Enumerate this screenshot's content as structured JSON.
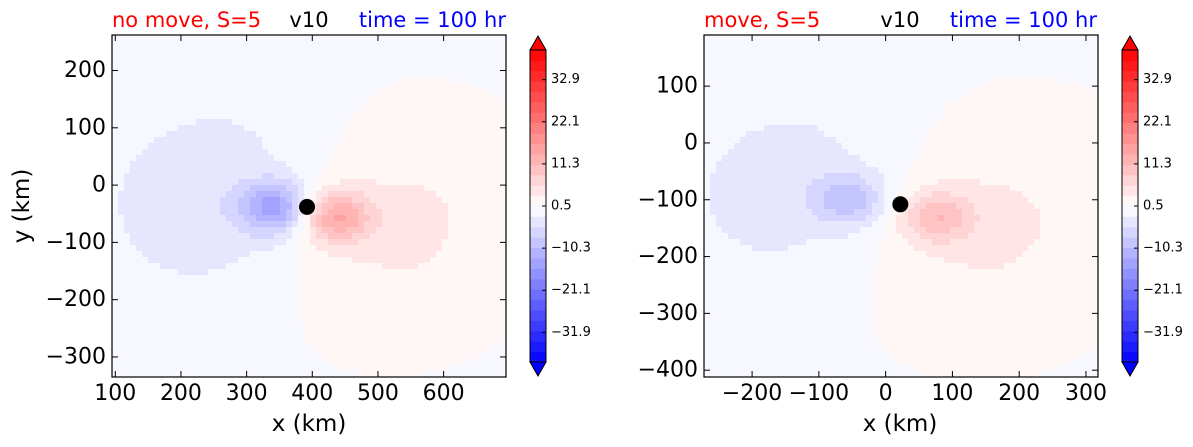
{
  "chart_data": [
    {
      "type": "heatmap",
      "title_left": "no move, S=5",
      "title_center": "v10",
      "title_right": "time = 100 hr",
      "title_colors": {
        "left": "#ff0000",
        "center": "#000000",
        "right": "#0000ff"
      },
      "xlabel": "x (km)",
      "ylabel": "y (km)",
      "xlim": [
        95,
        695
      ],
      "ylim": [
        -335,
        262
      ],
      "xticks": [
        100,
        200,
        300,
        400,
        500,
        600
      ],
      "xtick_labels": [
        "100",
        "200",
        "300",
        "400",
        "500",
        "600"
      ],
      "yticks": [
        200,
        100,
        0,
        -100,
        -200,
        -300
      ],
      "ytick_labels": [
        "200",
        "100",
        "0",
        "−100",
        "−200",
        "−300"
      ],
      "center_marker": {
        "x": 392,
        "y": -38
      },
      "field": {
        "neg_center": [
          345,
          -40
        ],
        "pos_center": [
          433,
          -55
        ],
        "neg_peak": -24,
        "pos_peak": 24,
        "spread_km": 220
      },
      "colorbar": {
        "ticks": [
          32.9,
          22.1,
          11.3,
          0.5,
          -10.3,
          -21.1,
          -31.9
        ],
        "tick_labels": [
          "32.9",
          "22.1",
          "11.3",
          "0.5",
          "−10.3",
          "−21.1",
          "−31.9"
        ],
        "vmin": -39.5,
        "vmax": 40.5,
        "levels": 30,
        "extend": "both"
      }
    },
    {
      "type": "heatmap",
      "title_left": "move, S=5",
      "title_center": "v10",
      "title_right": "time = 100 hr",
      "title_colors": {
        "left": "#ff0000",
        "center": "#000000",
        "right": "#0000ff"
      },
      "xlabel": "x (km)",
      "ylabel": "",
      "xlim": [
        -272,
        318
      ],
      "ylim": [
        -412,
        190
      ],
      "xticks": [
        -200,
        -100,
        0,
        100,
        200,
        300
      ],
      "xtick_labels": [
        "−200",
        "−100",
        "0",
        "100",
        "200",
        "300"
      ],
      "yticks": [
        100,
        0,
        -100,
        -200,
        -300,
        -400
      ],
      "ytick_labels": [
        "100",
        "0",
        "−100",
        "−200",
        "−300",
        "−400"
      ],
      "center_marker": {
        "x": 22,
        "y": -108
      },
      "field": {
        "neg_center": [
          -55,
          -100
        ],
        "pos_center": [
          75,
          -130
        ],
        "neg_peak": -15,
        "pos_peak": 16,
        "spread_km": 230
      },
      "colorbar": {
        "ticks": [
          32.9,
          22.1,
          11.3,
          0.5,
          -10.3,
          -21.1,
          -31.9
        ],
        "tick_labels": [
          "32.9",
          "22.1",
          "11.3",
          "0.5",
          "−10.3",
          "−21.1",
          "−31.9"
        ],
        "vmin": -39.5,
        "vmax": 40.5,
        "levels": 30,
        "extend": "both"
      }
    }
  ]
}
